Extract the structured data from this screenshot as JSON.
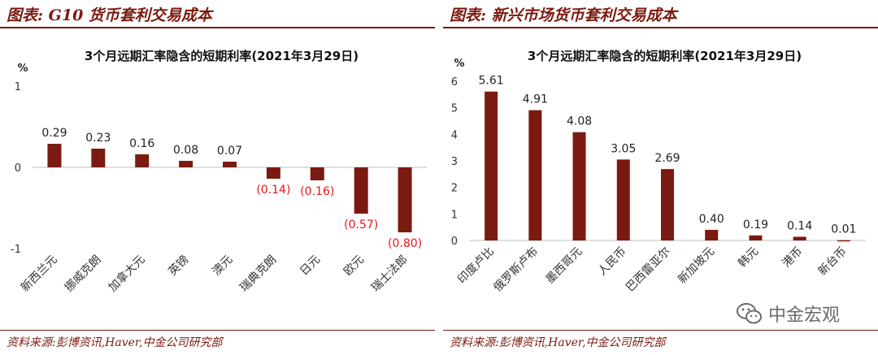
{
  "left": {
    "header_title": "图表: G10 货币套利交易成本",
    "source": "资料来源:彭博资讯,Haver,中金公司研究部"
  },
  "right": {
    "header_title": "图表: 新兴市场货币套利交易成本",
    "source": "资料来源:彭博资讯,Haver,中金公司研究部"
  },
  "watermark": {
    "icon": "wechat-icon",
    "text": "中金宏观"
  },
  "colors": {
    "bar": "#7b1a10",
    "negative_label": "#e8141c",
    "accent": "#7b1a10"
  },
  "chart_data": [
    {
      "type": "bar",
      "title": "3个月远期汇率隐含的短期利率(2021年3月29日)",
      "ylabel": "%",
      "ylim": [
        -1,
        1
      ],
      "yticks": [
        1,
        0,
        -1
      ],
      "categories": [
        "新西兰元",
        "挪威克朗",
        "加拿大元",
        "英镑",
        "澳元",
        "瑞典克朗",
        "日元",
        "欧元",
        "瑞士法郎"
      ],
      "values": [
        0.29,
        0.23,
        0.16,
        0.08,
        0.07,
        -0.14,
        -0.16,
        -0.57,
        -0.8
      ],
      "labels": [
        "0.29",
        "0.23",
        "0.16",
        "0.08",
        "0.07",
        "(0.14)",
        "(0.16)",
        "(0.57)",
        "(0.80)"
      ]
    },
    {
      "type": "bar",
      "title": "3个月远期汇率隐含的短期利率(2021年3月29日)",
      "ylabel": "%",
      "ylim": [
        0,
        6
      ],
      "yticks": [
        6,
        5,
        4,
        3,
        2,
        1,
        0
      ],
      "categories": [
        "印度卢比",
        "俄罗斯卢布",
        "墨西哥元",
        "人民币",
        "巴西雷亚尔",
        "新加坡元",
        "韩元",
        "港币",
        "新台币"
      ],
      "values": [
        5.61,
        4.91,
        4.08,
        3.05,
        2.69,
        0.4,
        0.19,
        0.14,
        0.01
      ],
      "labels": [
        "5.61",
        "4.91",
        "4.08",
        "3.05",
        "2.69",
        "0.40",
        "0.19",
        "0.14",
        "0.01"
      ]
    }
  ]
}
